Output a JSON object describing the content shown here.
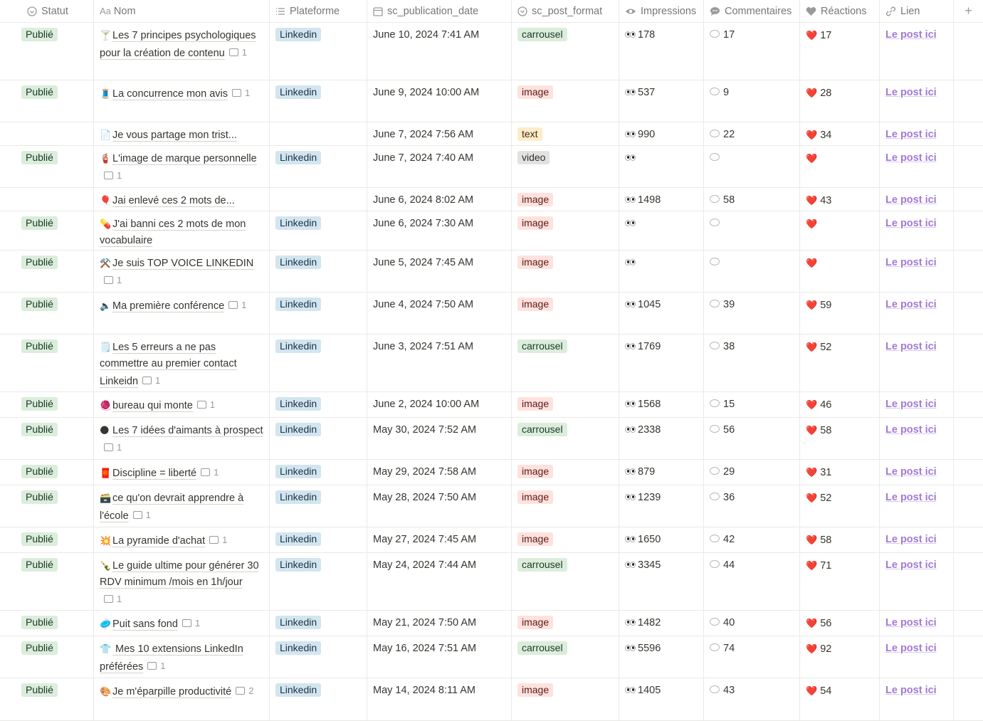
{
  "columns": {
    "statut": "Statut",
    "nom_prefix": "Aa",
    "nom": "Nom",
    "plateforme": "Plateforme",
    "date": "sc_publication_date",
    "format": "sc_post_format",
    "impressions": "Impressions",
    "commentaires": "Commentaires",
    "reactions": "Réactions",
    "lien": "Lien",
    "add": "+"
  },
  "rows": [
    {
      "statut": "Publié",
      "emoji": "🍸",
      "title": "Les 7 principes psychologiques pour la création de contenu",
      "comments": "1",
      "platform": "Linkedin",
      "date": "June 10, 2024 7:41 AM",
      "format": "carrousel",
      "impressions": "178",
      "commentaires": "17",
      "reactions": "17",
      "lien": "Le post ici",
      "h": 81
    },
    {
      "statut": "Publié",
      "emoji": "🧵",
      "title": "La concurrence mon avis",
      "comments": "1",
      "platform": "Linkedin",
      "date": "June 9, 2024 10:00 AM",
      "format": "image",
      "impressions": "537",
      "commentaires": "9",
      "reactions": "28",
      "lien": "Le post ici",
      "h": 59
    },
    {
      "statut": "",
      "emoji": "📄",
      "title": "Je vous partage mon trist...",
      "comments": "",
      "platform": "",
      "date": "June 7, 2024 7:56 AM",
      "format": "text",
      "impressions": "990",
      "commentaires": "22",
      "reactions": "34",
      "lien": "Le post ici",
      "h": 33
    },
    {
      "statut": "Publié",
      "emoji": "🧯",
      "title": "L'image de marque personnelle",
      "comments": "1",
      "platform": "Linkedin",
      "date": "June 7, 2024 7:40 AM",
      "format": "video",
      "impressions": "",
      "commentaires": "",
      "reactions": "",
      "lien": "Le post ici",
      "h": 59
    },
    {
      "statut": "",
      "emoji": "🎈",
      "title": "Jai enlevé ces 2 mots de...",
      "comments": "",
      "platform": "",
      "date": "June 6, 2024 8:02 AM",
      "format": "image",
      "impressions": "1498",
      "commentaires": "58",
      "reactions": "43",
      "lien": "Le post ici",
      "h": 33
    },
    {
      "statut": "Publié",
      "emoji": "💊",
      "title": "J'ai banni ces 2 mots de mon vocabulaire",
      "comments": "",
      "platform": "Linkedin",
      "date": "June 6, 2024 7:30 AM",
      "format": "image",
      "impressions": "",
      "commentaires": "",
      "reactions": "",
      "lien": "Le post ici",
      "h": 55
    },
    {
      "statut": "Publié",
      "emoji": "⚒️",
      "title": "Je suis TOP VOICE LINKEDIN",
      "comments": "1",
      "platform": "Linkedin",
      "date": "June 5, 2024 7:45 AM",
      "format": "image",
      "impressions": "",
      "commentaires": "",
      "reactions": "",
      "lien": "Le post ici",
      "h": 59
    },
    {
      "statut": "Publié",
      "emoji": "🔈",
      "title": "Ma première conférence",
      "comments": "1",
      "platform": "Linkedin",
      "date": "June 4, 2024 7:50 AM",
      "format": "image",
      "impressions": "1045",
      "commentaires": "39",
      "reactions": "59",
      "lien": "Le post ici",
      "h": 59
    },
    {
      "statut": "Publié",
      "emoji": "🗒️",
      "title": "Les 5 erreurs a ne pas commettre au premier contact Linkeidn",
      "comments": "1",
      "platform": "Linkedin",
      "date": "June 3, 2024 7:51 AM",
      "format": "carrousel",
      "impressions": "1769",
      "commentaires": "38",
      "reactions": "52",
      "lien": "Le post ici",
      "h": 81
    },
    {
      "statut": "Publié",
      "emoji": "🧶",
      "title": "bureau qui monte",
      "comments": "1",
      "platform": "Linkedin",
      "date": "June 2, 2024 10:00 AM",
      "format": "image",
      "impressions": "1568",
      "commentaires": "15",
      "reactions": "46",
      "lien": "Le post ici",
      "h": 36
    },
    {
      "statut": "Publié",
      "emoji": "🌑",
      "title": "Les 7 idées d'aimants à prospect",
      "comments": "1",
      "platform": "Linkedin",
      "date": "May 30, 2024 7:52 AM",
      "format": "carrousel",
      "impressions": "2338",
      "commentaires": "56",
      "reactions": "58",
      "lien": "Le post ici",
      "h": 59
    },
    {
      "statut": "Publié",
      "emoji": "🧧",
      "title": "Discipline = liberté",
      "comments": "1",
      "platform": "Linkedin",
      "date": "May 29, 2024 7:58 AM",
      "format": "image",
      "impressions": "879",
      "commentaires": "29",
      "reactions": "31",
      "lien": "Le post ici",
      "h": 36
    },
    {
      "statut": "Publié",
      "emoji": "🗃️",
      "title": "ce qu'on devrait apprendre à l'école",
      "comments": "1",
      "platform": "Linkedin",
      "date": "May 28, 2024 7:50 AM",
      "format": "image",
      "impressions": "1239",
      "commentaires": "36",
      "reactions": "52",
      "lien": "Le post ici",
      "h": 59
    },
    {
      "statut": "Publié",
      "emoji": "💥",
      "title": "La pyramide d'achat",
      "comments": "1",
      "platform": "Linkedin",
      "date": "May 27, 2024 7:45 AM",
      "format": "image",
      "impressions": "1650",
      "commentaires": "42",
      "reactions": "58",
      "lien": "Le post ici",
      "h": 36
    },
    {
      "statut": "Publié",
      "emoji": "🍾",
      "title": "Le guide ultime pour générer 30 RDV minimum /mois en 1h/jour",
      "comments": "1",
      "platform": "Linkedin",
      "date": "May 24, 2024 7:44 AM",
      "format": "carrousel",
      "impressions": "3345",
      "commentaires": "44",
      "reactions": "71",
      "lien": "Le post ici",
      "h": 81
    },
    {
      "statut": "Publié",
      "emoji": "🥏",
      "title": "Puit sans fond",
      "comments": "1",
      "platform": "Linkedin",
      "date": "May 21, 2024 7:50 AM",
      "format": "image",
      "impressions": "1482",
      "commentaires": "40",
      "reactions": "56",
      "lien": "Le post ici",
      "h": 36
    },
    {
      "statut": "Publié",
      "emoji": "👕",
      "title": " Mes 10 extensions LinkedIn préférées",
      "comments": "1",
      "platform": "Linkedin",
      "date": "May 16, 2024 7:51 AM",
      "format": "carrousel",
      "impressions": "5596",
      "commentaires": "74",
      "reactions": "92",
      "lien": "Le post ici",
      "h": 59
    },
    {
      "statut": "Publié",
      "emoji": "🎨",
      "title": "Je m'éparpille productivité",
      "comments": "2",
      "platform": "Linkedin",
      "date": "May 14, 2024 8:11 AM",
      "format": "image",
      "impressions": "1405",
      "commentaires": "43",
      "reactions": "54",
      "lien": "Le post ici",
      "h": 60
    }
  ]
}
